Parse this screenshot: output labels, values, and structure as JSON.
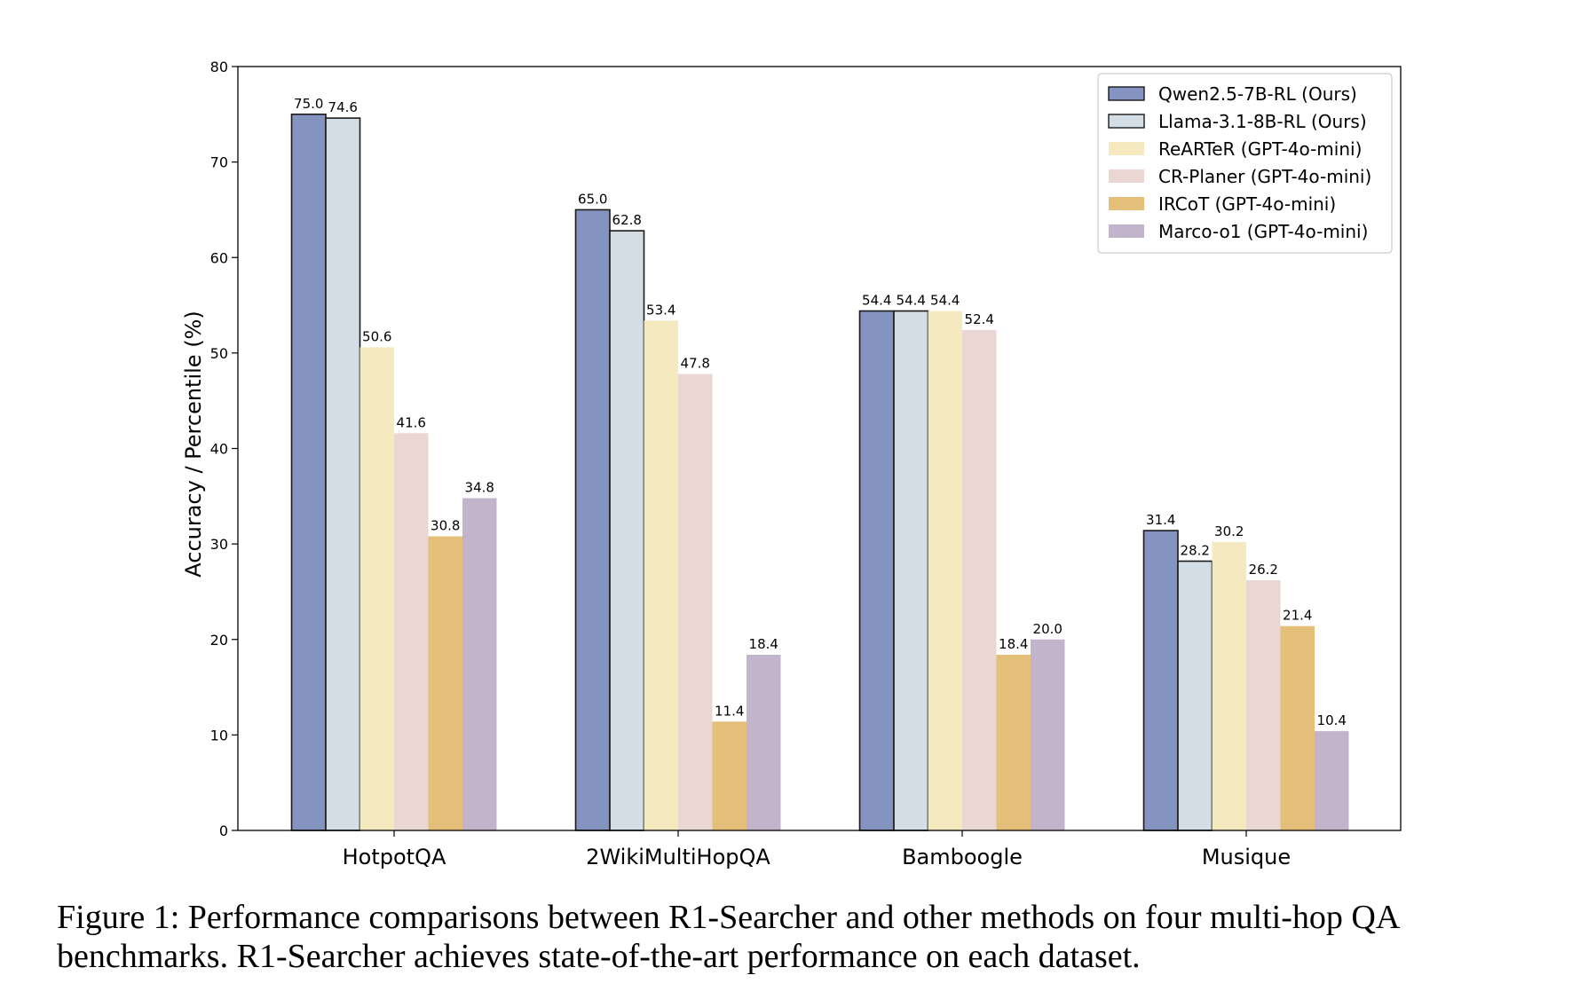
{
  "chart_data": {
    "type": "bar",
    "title": "",
    "xlabel": "",
    "ylabel": "Accuracy / Percentile (%)",
    "ylim": [
      0,
      80
    ],
    "yticks": [
      0,
      10,
      20,
      30,
      40,
      50,
      60,
      70,
      80
    ],
    "categories": [
      "HotpotQA",
      "2WikiMultiHopQA",
      "Bamboogle",
      "Musique"
    ],
    "legend_position": "top-right",
    "series": [
      {
        "name": "Qwen2.5-7B-RL (Ours)",
        "color": "#8593c1",
        "edge": "#1a1a1a",
        "values": [
          75.0,
          65.0,
          54.4,
          31.4
        ],
        "labels": [
          "75.0",
          "65.0",
          "54.4",
          "31.4"
        ]
      },
      {
        "name": "Llama-3.1-8B-RL (Ours)",
        "color": "#d3dde6",
        "edge": "#1a1a1a",
        "values": [
          74.6,
          62.8,
          54.4,
          28.2
        ],
        "labels": [
          "74.6",
          "62.8",
          "54.4",
          "28.2"
        ]
      },
      {
        "name": "ReARTeR (GPT-4o-mini)",
        "color": "#f5e9c0",
        "edge": "none",
        "values": [
          50.6,
          53.4,
          54.4,
          30.2
        ],
        "labels": [
          "50.6",
          "53.4",
          "54.4",
          "30.2"
        ]
      },
      {
        "name": "CR-Planer (GPT-4o-mini)",
        "color": "#ead6d2",
        "edge": "none",
        "values": [
          41.6,
          47.8,
          52.4,
          26.2
        ],
        "labels": [
          "41.6",
          "47.8",
          "52.4",
          "26.2"
        ]
      },
      {
        "name": "IRCoT (GPT-4o-mini)",
        "color": "#e3bf7a",
        "edge": "none",
        "values": [
          30.8,
          11.4,
          18.4,
          21.4
        ],
        "labels": [
          "30.8",
          "11.4",
          "18.4",
          "21.4"
        ]
      },
      {
        "name": "Marco-o1 (GPT-4o-mini)",
        "color": "#c2b5cb",
        "edge": "none",
        "values": [
          34.8,
          18.4,
          20.0,
          10.4
        ],
        "labels": [
          "34.8",
          "18.4",
          "20.0",
          "10.4"
        ]
      }
    ]
  },
  "caption": {
    "text": "Figure 1: Performance comparisons between R1-Searcher and other methods on four multi-hop QA benchmarks. R1-Searcher achieves state-of-the-art performance on each dataset."
  }
}
